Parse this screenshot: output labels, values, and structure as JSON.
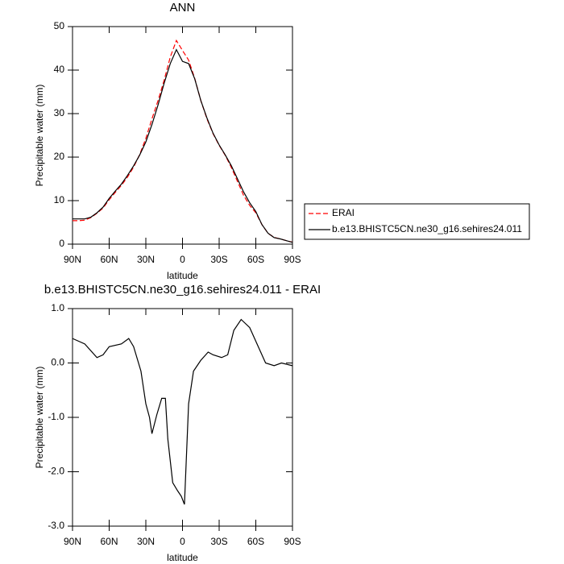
{
  "chart_data": [
    {
      "type": "line",
      "title": "ANN",
      "xlabel": "latitude",
      "ylabel": "Precipitable water (mm)",
      "x": [
        90,
        85,
        80,
        75,
        70,
        65,
        60,
        55,
        50,
        45,
        40,
        35,
        30,
        25,
        20,
        15,
        10,
        5,
        0,
        -5,
        -10,
        -15,
        -20,
        -25,
        -30,
        -35,
        -40,
        -45,
        -50,
        -55,
        -60,
        -65,
        -70,
        -75,
        -80,
        -85,
        -90
      ],
      "series": [
        {
          "name": "ERAI",
          "color": "#ff0000",
          "dash": "dashed",
          "values": [
            5.4,
            5.4,
            5.5,
            6.1,
            7.1,
            8.3,
            10.2,
            11.9,
            13.5,
            15.4,
            17.7,
            20.6,
            24.3,
            28.8,
            33,
            37.7,
            43,
            46.8,
            44.5,
            42.3,
            38.1,
            33,
            28.8,
            25.4,
            22.7,
            20.4,
            17.6,
            14.4,
            11.2,
            8.9,
            7.2,
            4.5,
            2.5,
            1.55,
            1.2,
            0.8,
            0.45
          ]
        },
        {
          "name": "b.e13.BHISTC5CN.ne30_g16.sehires24.011",
          "color": "#000000",
          "dash": "solid",
          "values": [
            5.8,
            5.8,
            5.8,
            6.2,
            7.2,
            8.5,
            10.5,
            12.2,
            13.8,
            15.8,
            18,
            20.5,
            23.5,
            27.5,
            32,
            37,
            41.5,
            44.7,
            42,
            41.5,
            38,
            33,
            29,
            25.5,
            22.8,
            20.5,
            18,
            15,
            12,
            9.5,
            7.5,
            4.5,
            2.5,
            1.5,
            1.2,
            0.8,
            0.4
          ]
        }
      ],
      "xlim": [
        90,
        -90
      ],
      "xticks": [
        {
          "value": 90,
          "label": "90N"
        },
        {
          "value": 60,
          "label": "60N"
        },
        {
          "value": 30,
          "label": "30N"
        },
        0,
        {
          "value": -30,
          "label": "30S"
        },
        {
          "value": -60,
          "label": "60S"
        },
        {
          "value": -90,
          "label": "90S"
        }
      ],
      "ylim": [
        0,
        50
      ],
      "yticks": [
        0,
        10,
        20,
        30,
        40,
        50
      ],
      "legend": "outside-right"
    },
    {
      "type": "line",
      "title": "b.e13.BHISTC5CN.ne30_g16.sehires24.011 - ERAI",
      "xlabel": "latitude",
      "ylabel": "Precipitable water (mm)",
      "x": [
        90,
        80,
        70,
        65,
        60,
        50,
        44,
        40,
        34,
        30,
        27,
        25,
        21,
        17,
        14,
        12,
        8,
        4,
        1,
        -1.6,
        -5,
        -9,
        -15,
        -21,
        -25,
        -32,
        -37,
        -42,
        -48,
        -55,
        -62,
        -68,
        -75,
        -81,
        -90
      ],
      "series": [
        {
          "color": "#000000",
          "dash": "solid",
          "values": [
            0.45,
            0.35,
            0.1,
            0.15,
            0.3,
            0.35,
            0.45,
            0.3,
            -0.15,
            -0.75,
            -1.0,
            -1.3,
            -0.95,
            -0.65,
            -0.65,
            -1.4,
            -2.2,
            -2.35,
            -2.45,
            -2.6,
            -0.75,
            -0.15,
            0.05,
            0.2,
            0.15,
            0.1,
            0.15,
            0.6,
            0.8,
            0.65,
            0.3,
            0.0,
            -0.05,
            0.0,
            -0.05
          ]
        }
      ],
      "xlim": [
        90,
        -90
      ],
      "xticks": [
        {
          "value": 90,
          "label": "90N"
        },
        {
          "value": 60,
          "label": "60N"
        },
        {
          "value": 30,
          "label": "30N"
        },
        0,
        {
          "value": -30,
          "label": "30S"
        },
        {
          "value": -60,
          "label": "60S"
        },
        {
          "value": -90,
          "label": "90S"
        }
      ],
      "ylim": [
        -3,
        1
      ],
      "yticks": [
        {
          "value": -3,
          "label": "-3.0"
        },
        {
          "value": -2,
          "label": "-2.0"
        },
        {
          "value": -1,
          "label": "-1.0"
        },
        {
          "value": 0,
          "label": "0.0"
        },
        {
          "value": 1,
          "label": "1.0"
        }
      ]
    }
  ]
}
